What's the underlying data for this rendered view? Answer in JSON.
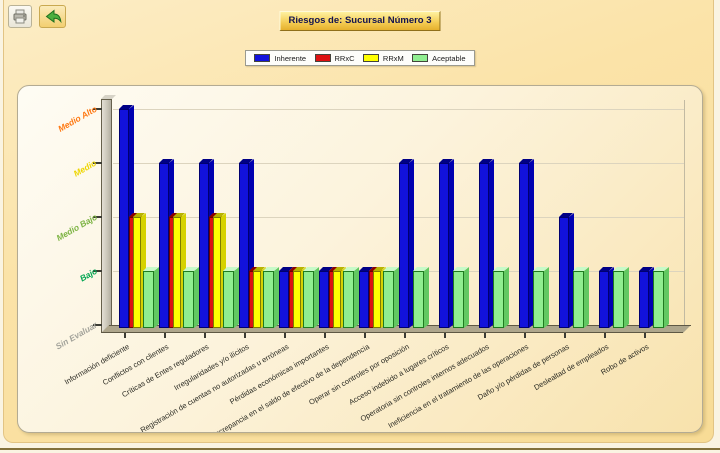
{
  "title": "Riesgos de: Sucursal Número 3",
  "toolbar": {
    "buttons": [
      {
        "name": "print-button",
        "icon": "printer-icon"
      },
      {
        "name": "back-button",
        "icon": "back-arrow-icon"
      }
    ]
  },
  "legend": [
    {
      "label": "Inherente",
      "color": "#1212DC"
    },
    {
      "label": "RRxC",
      "color": "#DD1111"
    },
    {
      "label": "RRxM",
      "color": "#FFFF00"
    },
    {
      "label": "Aceptable",
      "color": "#90EE90"
    }
  ],
  "chart_data": {
    "type": "bar",
    "title": "Riesgos de: Sucursal Número 3",
    "xlabel": "",
    "ylabel": "",
    "ylim": [
      0,
      4
    ],
    "grid": true,
    "legend_position": "top",
    "y_levels": [
      "Sin Evaluar",
      "Bajo",
      "Medio Bajo",
      "Medio",
      "Medio Alto"
    ],
    "y_level_colors": [
      "#A3A39B",
      "#00A550",
      "#7CB342",
      "#EDD500",
      "#FF7710"
    ],
    "categories": [
      "Información deficiente",
      "Conflictos con clientes",
      "Críticas de Entes reguladores",
      "Irregularidades y/o ilícitos",
      "Registración de cuentas no autorizadas u erróneas",
      "Pérdidas económicas importantes",
      "Discrepancia en el saldo de efectivo de la dependencia",
      "Operar sin controles por oposición",
      "Acceso indebido a lugares críticos",
      "Operatoria sin controles internos adecuados",
      "Ineficiencia en el tratamiento de las operaciones",
      "Daño y/o pérdidas de personas",
      "Deslealtad de empleados",
      "Robo de activos"
    ],
    "series": [
      {
        "name": "Inherente",
        "color": "#1212DC",
        "values": [
          4,
          3,
          3,
          3,
          1,
          1,
          1,
          3,
          3,
          3,
          3,
          2,
          1,
          1
        ]
      },
      {
        "name": "RRxC",
        "color": "#DD1111",
        "values": [
          2,
          2,
          2,
          1,
          1,
          1,
          1,
          0,
          0,
          0,
          0,
          0,
          0,
          0
        ]
      },
      {
        "name": "RRxM",
        "color": "#FFFF00",
        "values": [
          2,
          2,
          2,
          1,
          1,
          1,
          1,
          0,
          0,
          0,
          0,
          0,
          0,
          0
        ]
      },
      {
        "name": "Aceptable",
        "color": "#90EE90",
        "values": [
          1,
          1,
          1,
          1,
          1,
          1,
          1,
          1,
          1,
          1,
          1,
          1,
          1,
          1
        ]
      }
    ]
  }
}
